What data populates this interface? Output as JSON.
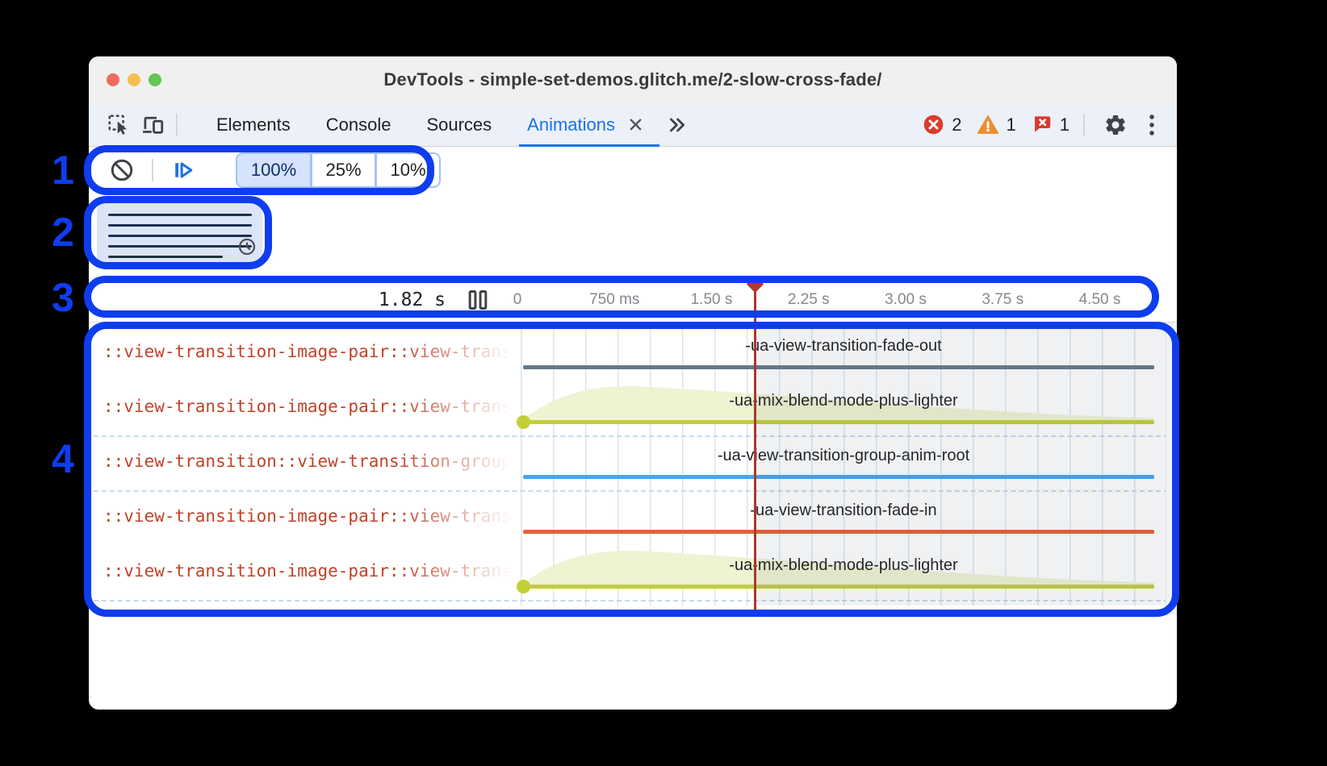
{
  "window": {
    "title": "DevTools - simple-set-demos.glitch.me/2-slow-cross-fade/"
  },
  "toolbar": {
    "tabs": [
      {
        "label": "Elements",
        "selected": false,
        "closable": false
      },
      {
        "label": "Console",
        "selected": false,
        "closable": false
      },
      {
        "label": "Sources",
        "selected": false,
        "closable": false
      },
      {
        "label": "Animations",
        "selected": true,
        "closable": true
      }
    ],
    "badges": {
      "errors": "2",
      "warnings": "1",
      "issues": "1"
    }
  },
  "controls": {
    "speed_options": [
      {
        "label": "100%",
        "selected": true
      },
      {
        "label": "25%",
        "selected": false
      },
      {
        "label": "10%",
        "selected": false
      }
    ]
  },
  "timeline": {
    "current_time": "1.82 s",
    "ticks": [
      "0",
      "750 ms",
      "1.50 s",
      "2.25 s",
      "3.00 s",
      "3.75 s",
      "4.50 s"
    ]
  },
  "tracks": [
    {
      "selector": "::view-transition-image-pair::view-transition",
      "animation": "-ua-view-transition-fade-out",
      "kind": "bar",
      "color": "#64798b",
      "separator_after": false
    },
    {
      "selector": "::view-transition-image-pair::view-transition",
      "animation": "-ua-mix-blend-mode-plus-lighter",
      "kind": "easing",
      "color": "#c2cf36",
      "fill": "#eff3d2",
      "separator_after": true
    },
    {
      "selector": "::view-transition::view-transition-group",
      "animation": "-ua-view-transition-group-anim-root",
      "kind": "bar",
      "color": "#46a6f1",
      "separator_after": true
    },
    {
      "selector": "::view-transition-image-pair::view-transition",
      "animation": "-ua-view-transition-fade-in",
      "kind": "bar",
      "color": "#e8613b",
      "separator_after": false
    },
    {
      "selector": "::view-transition-image-pair::view-transition",
      "animation": "-ua-mix-blend-mode-plus-lighter",
      "kind": "easing",
      "color": "#c2cf36",
      "fill": "#eff3d2",
      "separator_after": true
    }
  ],
  "callouts": [
    {
      "n": "1"
    },
    {
      "n": "2"
    },
    {
      "n": "3"
    },
    {
      "n": "4"
    }
  ],
  "colors": {
    "accent": "#1a73e8",
    "callout": "#0e3df0",
    "playhead": "#b23a29",
    "error": "#dc3b2a",
    "warning": "#ef8d30",
    "issue": "#d9392b",
    "gridline": "#d8e5f6",
    "selector_text": "#bf4329"
  }
}
